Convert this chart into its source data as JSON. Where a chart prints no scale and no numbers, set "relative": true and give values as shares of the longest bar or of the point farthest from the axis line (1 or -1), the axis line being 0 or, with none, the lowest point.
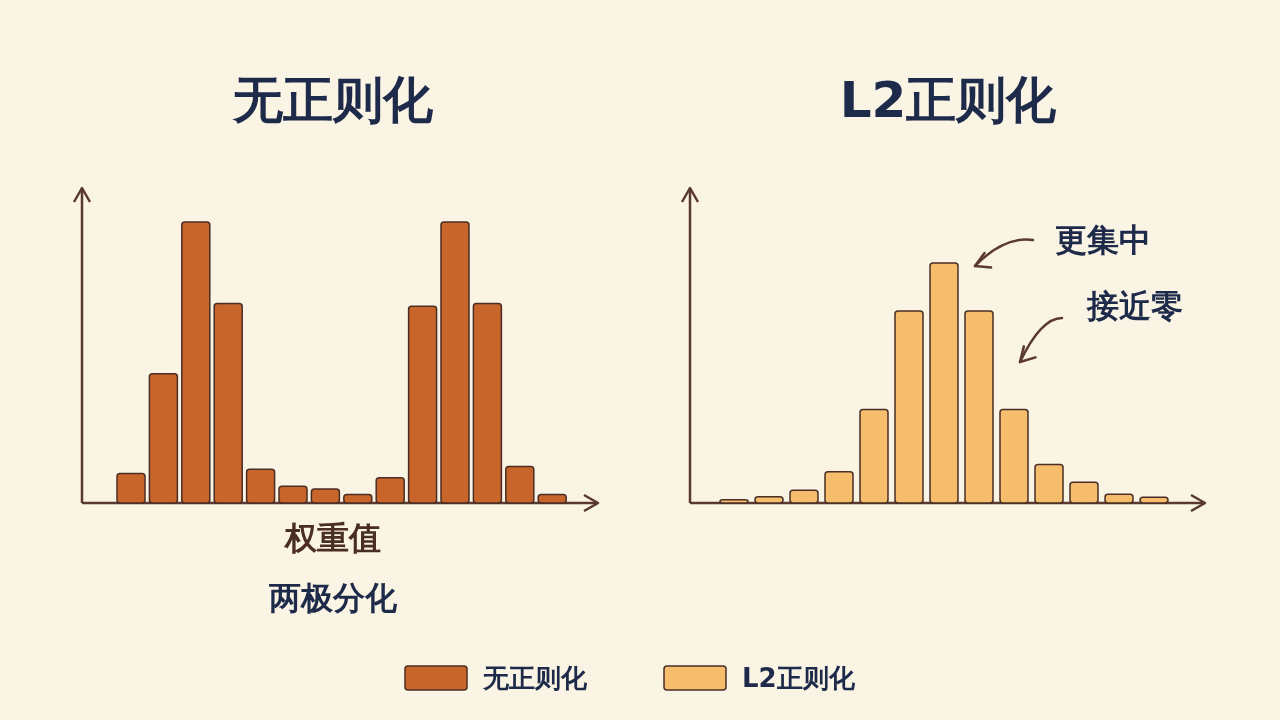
{
  "chart_data": [
    {
      "type": "bar",
      "title": "无正则化",
      "categories": [
        null,
        null,
        null,
        null,
        null,
        null,
        null,
        null,
        null,
        null,
        null,
        null,
        null,
        null
      ],
      "relative": true,
      "legend": "bottom",
      "annotations": [
        "权重值",
        "两极分化"
      ],
      "series": [
        {
          "name": "无正则化",
          "color": "#c8652a",
          "values": [
            0.105,
            0.46,
            1,
            0.71,
            0.12,
            0.06,
            0.05,
            0.03,
            0.09,
            0.7,
            1,
            0.71,
            0.13,
            0.03
          ]
        }
      ]
    },
    {
      "type": "bar",
      "title": "L2正则化",
      "categories": [
        null,
        null,
        null,
        null,
        null,
        null,
        null,
        null,
        null,
        null,
        null,
        null,
        null
      ],
      "relative": true,
      "legend": "bottom",
      "annotations": [
        "更集中",
        "接近零"
      ],
      "series": [
        {
          "name": "L2正则化",
          "color": "#f5bd6c",
          "values": [
            0.014,
            0.026,
            0.053,
            0.13,
            0.39,
            0.8,
            1,
            0.8,
            0.39,
            0.16,
            0.086,
            0.036,
            0.024
          ]
        }
      ]
    }
  ]
}
